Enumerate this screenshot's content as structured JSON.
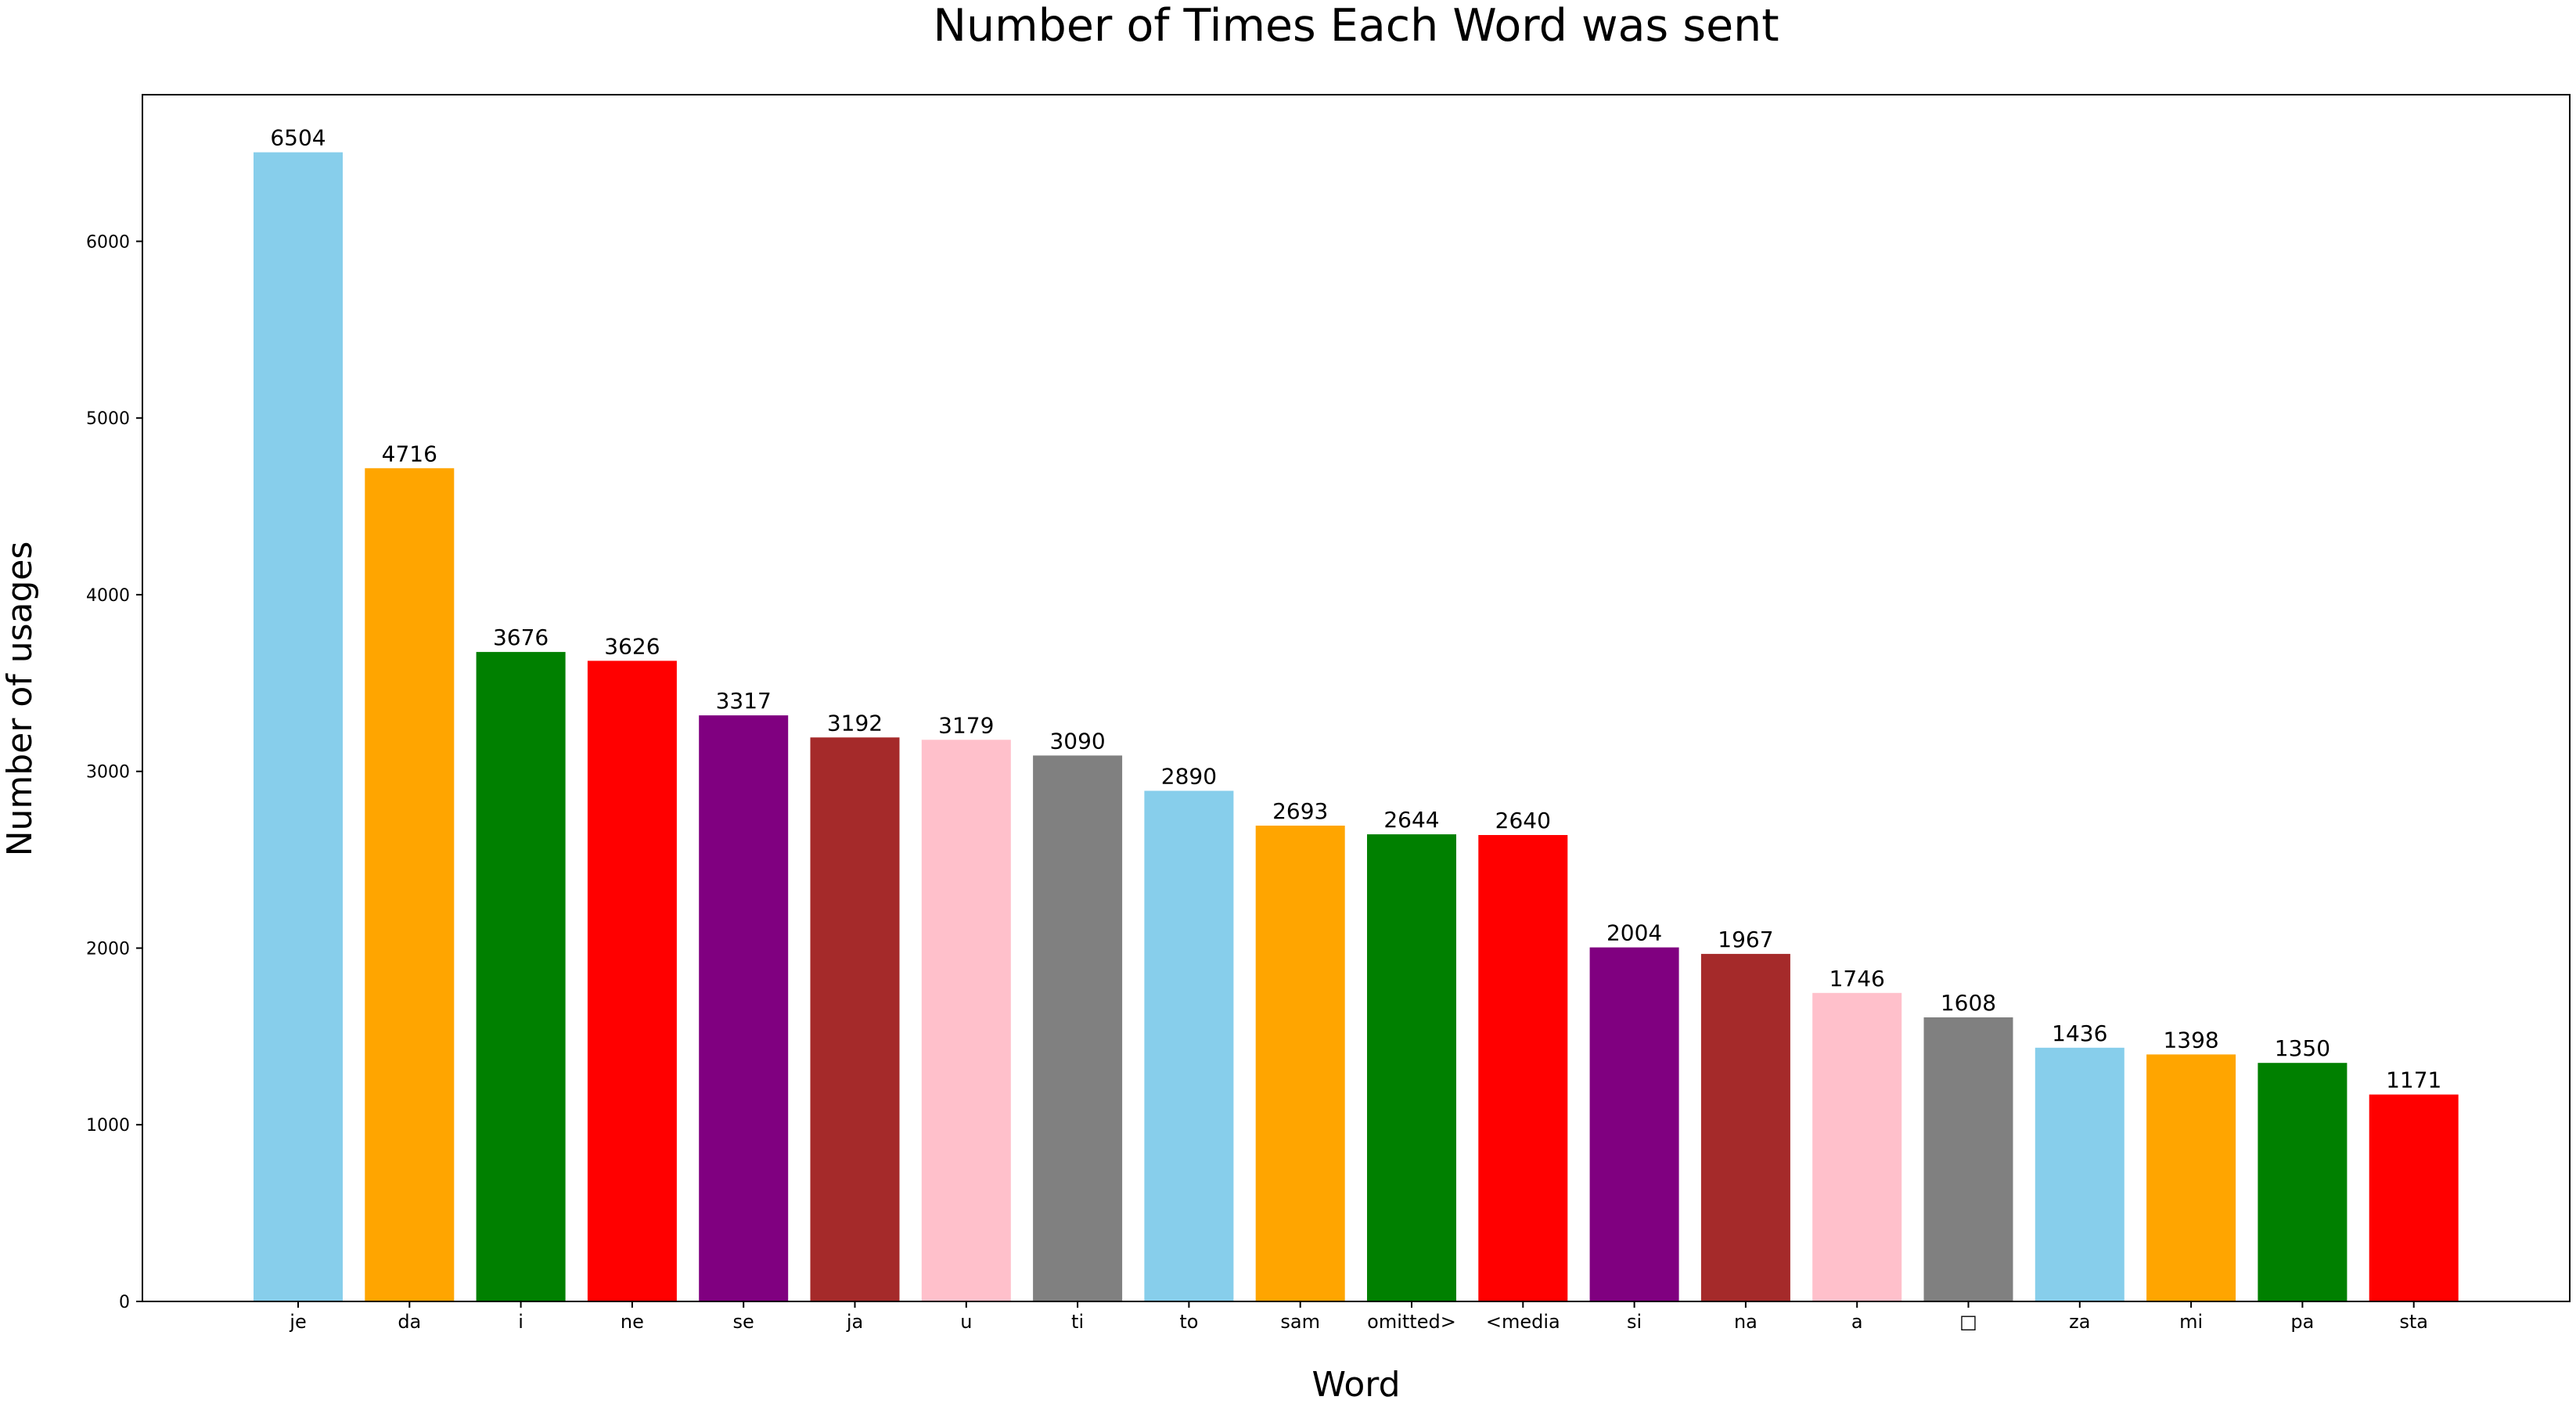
{
  "chart_data": {
    "type": "bar",
    "title": "Number of Times Each Word was sent",
    "xlabel": "Word",
    "ylabel": "Number of usages",
    "categories": [
      "je",
      "da",
      "i",
      "ne",
      "se",
      "ja",
      "u",
      "ti",
      "to",
      "sam",
      "omitted>",
      "<media",
      "si",
      "na",
      "a",
      "□",
      "za",
      "mi",
      "pa",
      "sta"
    ],
    "values": [
      6504,
      4716,
      3676,
      3626,
      3317,
      3192,
      3179,
      3090,
      2890,
      2693,
      2644,
      2640,
      2004,
      1967,
      1746,
      1608,
      1436,
      1398,
      1350,
      1171
    ],
    "colors": [
      "#87CEEB",
      "#FFA500",
      "#008000",
      "#FF0000",
      "#800080",
      "#A52A2A",
      "#FFC0CB",
      "#808080",
      "#87CEEB",
      "#FFA500",
      "#008000",
      "#FF0000",
      "#800080",
      "#A52A2A",
      "#FFC0CB",
      "#808080",
      "#87CEEB",
      "#FFA500",
      "#008000",
      "#FF0000"
    ],
    "y_ticks": [
      "0",
      "1000",
      "2000",
      "3000",
      "4000",
      "5000",
      "6000"
    ],
    "ylim": [
      0,
      6830
    ],
    "grid": false,
    "legend": "none"
  }
}
